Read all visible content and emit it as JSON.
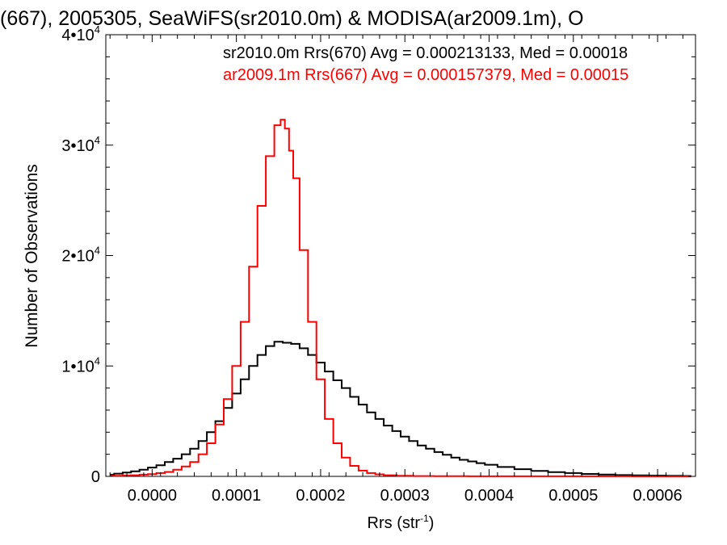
{
  "chart_data": {
    "type": "line",
    "title": "(667), 2005305, SeaWiFS(sr2010.0m) & MODISA(ar2009.1m), O",
    "xlabel": "Rrs (str",
    "xlabel_sup": "-1",
    "xlabel_close": ")",
    "ylabel": "Number of Observations",
    "xlim": [
      -5.5e-05,
      0.000645
    ],
    "ylim": [
      0,
      40000
    ],
    "x_ticks": [
      {
        "value": 0.0,
        "label": "0.0000"
      },
      {
        "value": 0.0001,
        "label": "0.0001"
      },
      {
        "value": 0.0002,
        "label": "0.0002"
      },
      {
        "value": 0.0003,
        "label": "0.0003"
      },
      {
        "value": 0.0004,
        "label": "0.0004"
      },
      {
        "value": 0.0005,
        "label": "0.0005"
      },
      {
        "value": 0.0006,
        "label": "0.0006"
      }
    ],
    "y_ticks": [
      {
        "value": 0,
        "base": "0",
        "exp": ""
      },
      {
        "value": 10000,
        "base": "1•10",
        "exp": "4"
      },
      {
        "value": 20000,
        "base": "2•10",
        "exp": "4"
      },
      {
        "value": 30000,
        "base": "3•10",
        "exp": "4"
      },
      {
        "value": 40000,
        "base": "4•10",
        "exp": "4"
      }
    ],
    "grid": false,
    "series": [
      {
        "name": "sr2010.0m Rrs(670) Avg = 0.000213133, Med = 0.00018",
        "color": "#000000",
        "x": [
          -5e-05,
          -4e-05,
          -3e-05,
          -2e-05,
          -1e-05,
          0.0,
          1e-05,
          2e-05,
          3e-05,
          4e-05,
          5e-05,
          6e-05,
          7e-05,
          8e-05,
          9e-05,
          0.0001,
          0.00011,
          0.00012,
          0.00013,
          0.00014,
          0.00015,
          0.00016,
          0.00017,
          0.00018,
          0.00019,
          0.0002,
          0.00021,
          0.00022,
          0.00023,
          0.00024,
          0.00025,
          0.00026,
          0.00027,
          0.00028,
          0.00029,
          0.0003,
          0.00031,
          0.00032,
          0.00033,
          0.00034,
          0.00035,
          0.00036,
          0.00037,
          0.00038,
          0.00039,
          0.0004,
          0.00042,
          0.00044,
          0.00046,
          0.00048,
          0.0005,
          0.00052,
          0.00054,
          0.00056,
          0.00058,
          0.0006,
          0.00062,
          0.00064
        ],
        "y": [
          150,
          250,
          350,
          450,
          600,
          800,
          1000,
          1300,
          1600,
          2000,
          2500,
          3200,
          4000,
          5000,
          6200,
          7500,
          8800,
          10000,
          11000,
          11800,
          12200,
          12100,
          12000,
          11600,
          11000,
          10300,
          9500,
          8700,
          8000,
          7200,
          6500,
          5800,
          5200,
          4600,
          4100,
          3600,
          3200,
          2800,
          2500,
          2200,
          1950,
          1700,
          1500,
          1350,
          1200,
          1050,
          850,
          650,
          500,
          380,
          300,
          220,
          160,
          120,
          90,
          70,
          50,
          40
        ]
      },
      {
        "name": "ar2009.1m Rrs(667) Avg = 0.000157379, Med = 0.00015",
        "color": "#ff0000",
        "x": [
          -5e-05,
          -4e-05,
          -3e-05,
          -2e-05,
          -1e-05,
          0.0,
          1e-05,
          2e-05,
          3e-05,
          4e-05,
          5e-05,
          6e-05,
          7e-05,
          8e-05,
          9e-05,
          0.0001,
          0.00011,
          0.00012,
          0.00013,
          0.00014,
          0.00015,
          0.000155,
          0.00016,
          0.000165,
          0.00017,
          0.00018,
          0.00019,
          0.0002,
          0.00021,
          0.00022,
          0.00023,
          0.00024,
          0.00025,
          0.00026,
          0.00027,
          0.00028,
          0.0003,
          0.00032,
          0.00035,
          0.0004,
          0.0005,
          0.00064
        ],
        "y": [
          50,
          60,
          80,
          100,
          150,
          200,
          300,
          400,
          600,
          900,
          1300,
          2000,
          3000,
          4700,
          7000,
          10000,
          14000,
          19000,
          24500,
          29000,
          31800,
          32300,
          31500,
          29500,
          27000,
          20500,
          14000,
          8800,
          5200,
          3000,
          1700,
          950,
          520,
          300,
          180,
          100,
          50,
          30,
          15,
          8,
          4,
          2
        ]
      }
    ]
  }
}
